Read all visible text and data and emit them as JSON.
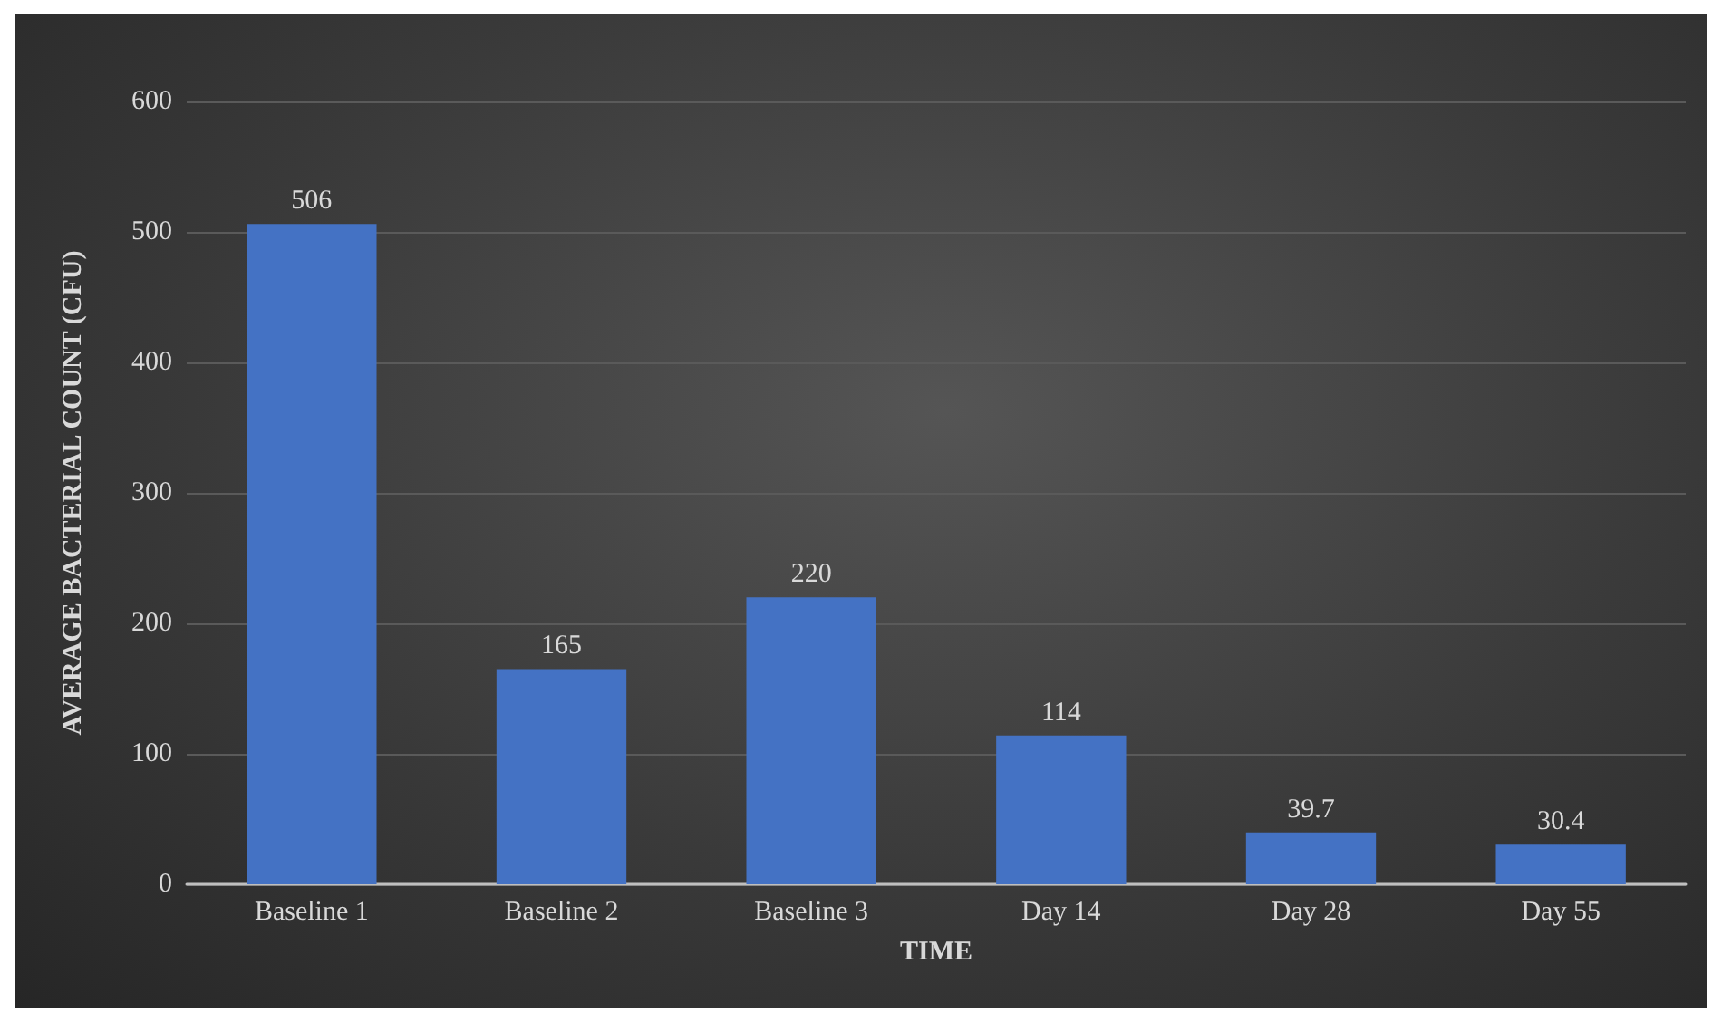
{
  "chart_data": {
    "type": "bar",
    "xlabel": "TIME",
    "ylabel": "AVERAGE BACTERIAL COUNT (CFU)",
    "categories": [
      "Baseline 1",
      "Baseline 2",
      "Baseline 3",
      "Day 14",
      "Day 28",
      "Day 55"
    ],
    "values": [
      506,
      165,
      220,
      114,
      39.7,
      30.4
    ],
    "color": "#4472c4",
    "ylim": [
      0,
      600
    ],
    "yticks": [
      0,
      100,
      200,
      300,
      400,
      500,
      600
    ],
    "grid": "y",
    "data_labels": true
  }
}
